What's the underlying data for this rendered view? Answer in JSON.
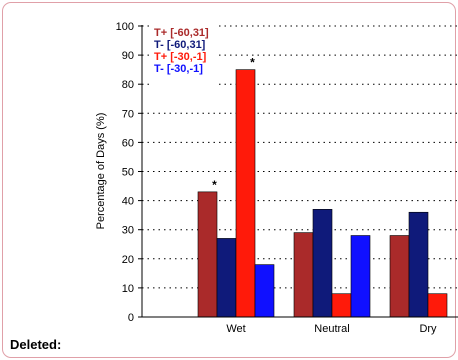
{
  "chart_data": {
    "type": "bar",
    "categories": [
      "Wet",
      "Neutral",
      "Dry"
    ],
    "series": [
      {
        "name": "T+ [-60,31]",
        "color": "#aa2a2a",
        "values": [
          43,
          29,
          28
        ]
      },
      {
        "name": "T-  [-60,31]",
        "color": "#0f1a7a",
        "values": [
          27,
          37,
          36
        ]
      },
      {
        "name": "T+ [-30,-1]",
        "color": "#ff1a0a",
        "values": [
          85,
          8,
          8
        ]
      },
      {
        "name": "T-  [-30,-1]",
        "color": "#1010ff",
        "values": [
          18,
          28,
          null
        ]
      }
    ],
    "ylabel": "Percentage of Days (%)",
    "ylim": [
      0,
      100
    ],
    "yticks": [
      0,
      10,
      20,
      30,
      40,
      50,
      60,
      70,
      80,
      90,
      100
    ],
    "grid": "dotted horizontal",
    "legend_position": "top-left",
    "annotations": [
      {
        "text": "*",
        "category": "Wet",
        "series": 0
      },
      {
        "text": "*",
        "category": "Wet",
        "series": 2
      }
    ]
  },
  "footer": {
    "deleted_label": "Deleted:"
  }
}
